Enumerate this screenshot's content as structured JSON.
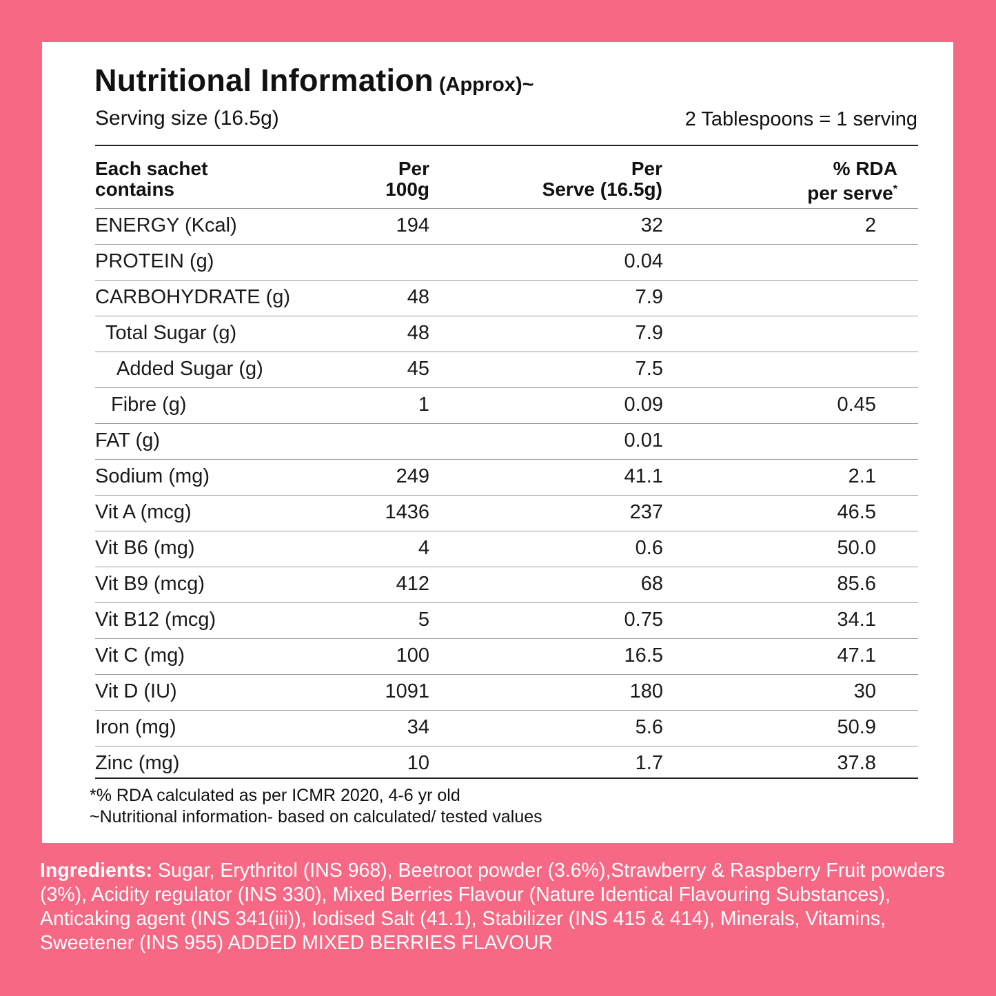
{
  "colors": {
    "background": "#f76884",
    "panel": "#ffffff",
    "text": "#111111",
    "ingredients_text": "#ffffff"
  },
  "title": {
    "main": "Nutritional Information",
    "suffix": "(Approx)~"
  },
  "serving": {
    "size": "Serving size (16.5g)",
    "note": "2 Tablespoons = 1 serving"
  },
  "table": {
    "headers": [
      {
        "line1": "Each sachet",
        "line2": "contains"
      },
      {
        "line1": "Per",
        "line2": "100g"
      },
      {
        "line1": "Per",
        "line2": "Serve (16.5g)"
      },
      {
        "line1": "% RDA",
        "line2": "per serve",
        "mark": "*"
      }
    ],
    "rows": [
      {
        "name": "ENERGY (Kcal)",
        "per100": "194",
        "perServe": "32",
        "rda": "2"
      },
      {
        "name": "PROTEIN (g)",
        "per100": "",
        "perServe": "0.04",
        "rda": ""
      },
      {
        "name": "CARBOHYDRATE (g)",
        "per100": "48",
        "perServe": "7.9",
        "rda": ""
      },
      {
        "name": "Total Sugar (g)",
        "per100": "48",
        "perServe": "7.9",
        "rda": ""
      },
      {
        "name": "Added Sugar (g)",
        "per100": "45",
        "perServe": "7.5",
        "rda": ""
      },
      {
        "name": "Fibre (g)",
        "per100": "1",
        "perServe": "0.09",
        "rda": "0.45"
      },
      {
        "name": "FAT (g)",
        "per100": "",
        "perServe": "0.01",
        "rda": ""
      },
      {
        "name": "Sodium (mg)",
        "per100": "249",
        "perServe": "41.1",
        "rda": "2.1"
      },
      {
        "name": "Vit A (mcg)",
        "per100": "1436",
        "perServe": "237",
        "rda": "46.5"
      },
      {
        "name": "Vit B6 (mg)",
        "per100": "4",
        "perServe": "0.6",
        "rda": "50.0"
      },
      {
        "name": "Vit B9 (mcg)",
        "per100": "412",
        "perServe": "68",
        "rda": "85.6"
      },
      {
        "name": "Vit B12 (mcg)",
        "per100": "5",
        "perServe": "0.75",
        "rda": "34.1"
      },
      {
        "name": "Vit C (mg)",
        "per100": "100",
        "perServe": "16.5",
        "rda": "47.1"
      },
      {
        "name": "Vit D (IU)",
        "per100": "1091",
        "perServe": "180",
        "rda": "30"
      },
      {
        "name": "Iron (mg)",
        "per100": "34",
        "perServe": "5.6",
        "rda": "50.9"
      },
      {
        "name": "Zinc (mg)",
        "per100": "10",
        "perServe": "1.7",
        "rda": "37.8"
      }
    ]
  },
  "footnotes": [
    "*% RDA calculated as per ICMR 2020, 4-6 yr old",
    "~Nutritional information- based on calculated/ tested values"
  ],
  "ingredients": {
    "label": "Ingredients:",
    "text": " Sugar, Erythritol (INS 968), Beetroot powder (3.6%),Strawberry & Raspberry Fruit powders (3%), Acidity regulator (INS 330), Mixed Berries Flavour (Nature Identical Flavouring Substances), Anticaking agent (INS 341(iii)), Iodised Salt (41.1), Stabilizer (INS 415 & 414), Minerals, Vitamins, Sweetener (INS 955) ADDED MIXED BERRIES FLAVOUR"
  }
}
